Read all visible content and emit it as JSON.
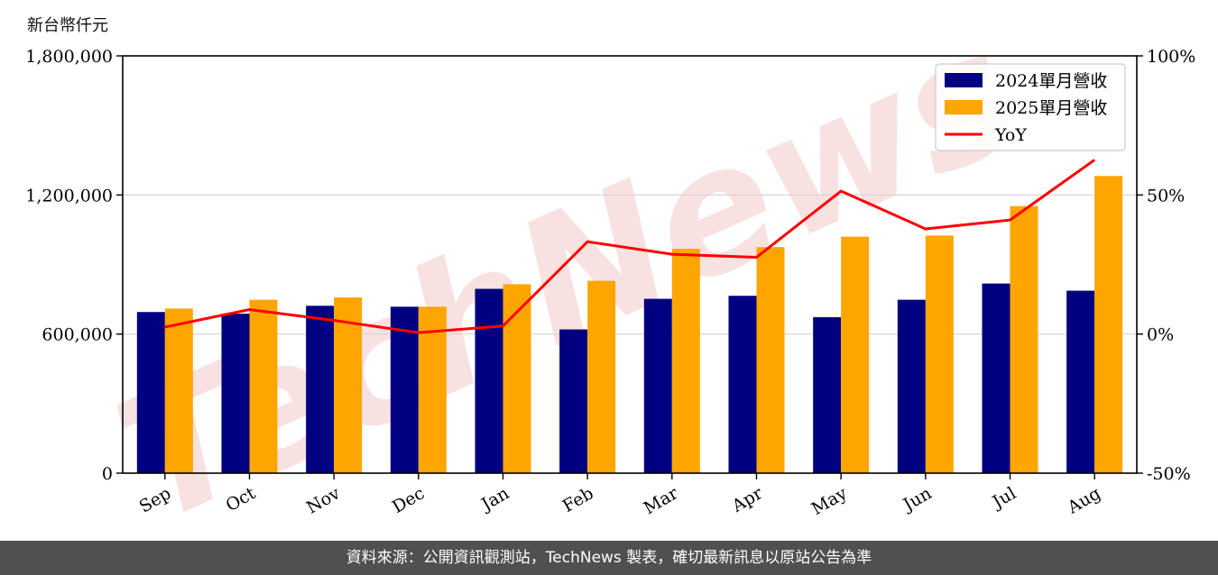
{
  "unit_label": "新台幣仟元",
  "watermark": "TechNews",
  "footer_text": "資料來源：公開資訊觀測站，TechNews 製表，確切最新訊息以原站公告為準",
  "colors": {
    "series_2024": "#000080",
    "series_2025": "#FFA500",
    "yoy": "#FF0000",
    "grid": "#d3d3d3",
    "watermark": "#f3c9c9",
    "footer_bg": "#505050"
  },
  "chart_data": {
    "type": "bar",
    "categories": [
      "Sep",
      "Oct",
      "Nov",
      "Dec",
      "Jan",
      "Feb",
      "Mar",
      "Apr",
      "May",
      "Jun",
      "Jul",
      "Aug"
    ],
    "series": [
      {
        "name": "2024單月營收",
        "type": "bar",
        "axis": "left",
        "values": [
          695000,
          688000,
          722000,
          718000,
          795000,
          620000,
          752000,
          765000,
          673000,
          748000,
          818000,
          787000
        ]
      },
      {
        "name": "2025單月營收",
        "type": "bar",
        "axis": "left",
        "values": [
          710000,
          748000,
          758000,
          718000,
          815000,
          830000,
          968000,
          975000,
          1020000,
          1025000,
          1152000,
          1282000
        ]
      },
      {
        "name": "YoY",
        "type": "line",
        "axis": "right",
        "unit": "%",
        "values": [
          2.5,
          8.8,
          4.9,
          0.5,
          2.9,
          33.2,
          28.7,
          27.6,
          51.4,
          37.8,
          41.0,
          62.6
        ]
      }
    ],
    "y_left": {
      "ylim": [
        0,
        1800000
      ],
      "ticks": [
        0,
        600000,
        1200000,
        1800000
      ],
      "tick_labels": [
        "0",
        "600,000",
        "1,200,000",
        "1,800,000"
      ]
    },
    "y_right": {
      "ylim": [
        -50,
        100
      ],
      "ticks": [
        -50,
        0,
        50,
        100
      ],
      "tick_labels": [
        "-50%",
        "0%",
        "50%",
        "100%"
      ]
    },
    "grid": "horizontal",
    "legend": "top-right",
    "xlabel": "",
    "ylabel": ""
  }
}
